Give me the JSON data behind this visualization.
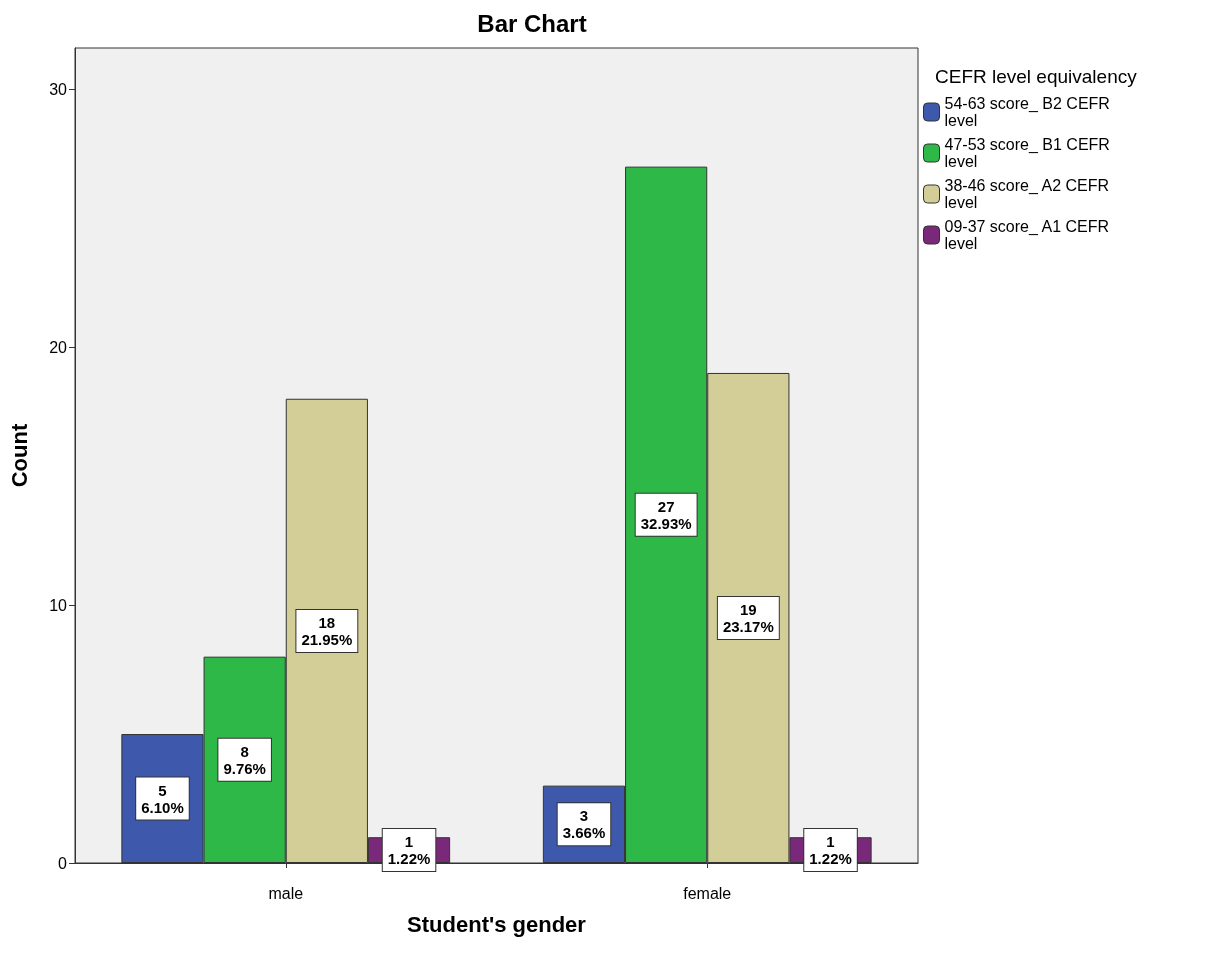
{
  "chart_data": {
    "type": "bar",
    "title": "Bar Chart",
    "xlabel": "Student's gender",
    "ylabel": "Count",
    "legend_title": "CEFR level equivalency",
    "categories": [
      "male",
      "female"
    ],
    "series": [
      {
        "name": "54-63 score_ B2 CEFR level",
        "color": "#3e58ac",
        "values": [
          5,
          3
        ],
        "value_labels": [
          "5\n6.10%",
          "3\n3.66%"
        ]
      },
      {
        "name": "47-53 score_ B1 CEFR level",
        "color": "#2eb848",
        "values": [
          8,
          27
        ],
        "value_labels": [
          "8\n9.76%",
          "27\n32.93%"
        ]
      },
      {
        "name": "38-46 score_ A2 CEFR level",
        "color": "#d3ce97",
        "values": [
          18,
          19
        ],
        "value_labels": [
          "18\n21.95%",
          "19\n23.17%"
        ]
      },
      {
        "name": "09-37 score_ A1 CEFR level",
        "color": "#79287a",
        "values": [
          1,
          1
        ],
        "value_labels": [
          "1\n1.22%",
          "1\n1.22%"
        ]
      }
    ],
    "ylim": [
      0,
      31.6
    ],
    "yticks": [
      0,
      10,
      20,
      30
    ],
    "grid": false,
    "legend": "top right"
  }
}
